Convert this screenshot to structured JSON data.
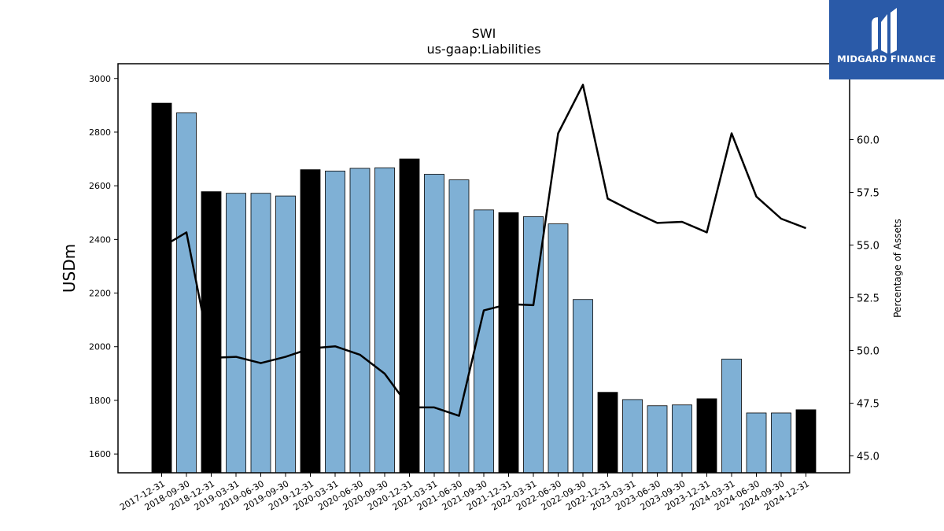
{
  "brand": {
    "name": "MIDGARD FINANCE",
    "logo_icon": "midgard-m-icon",
    "bg_color": "#2a5aa8"
  },
  "chart_data": {
    "type": "bar+line",
    "title": "SWI",
    "subtitle": "us-gaap:Liabilities",
    "ylabel": "USDm",
    "y2label": "Percentage of Assets",
    "ylim": [
      1530,
      3055
    ],
    "y2lim": [
      44.2,
      63.6
    ],
    "yticks": [
      1600,
      1800,
      2000,
      2200,
      2400,
      2600,
      2800,
      3000
    ],
    "y2ticks": [
      45.0,
      47.5,
      50.0,
      52.5,
      55.0,
      57.5,
      60.0
    ],
    "y2tick_labels": [
      "45.0",
      "47.5",
      "50.0",
      "52.5",
      "55.0",
      "57.5",
      "60.0"
    ],
    "categories": [
      "2017-12-31",
      "2018-09-30",
      "2018-12-31",
      "2019-03-31",
      "2019-06-30",
      "2019-09-30",
      "2019-12-31",
      "2020-03-31",
      "2020-06-30",
      "2020-09-30",
      "2020-12-31",
      "2021-03-31",
      "2021-06-30",
      "2021-09-30",
      "2021-12-31",
      "2022-03-31",
      "2022-06-30",
      "2022-09-30",
      "2022-12-31",
      "2023-03-31",
      "2023-06-30",
      "2023-09-30",
      "2023-12-31",
      "2024-03-31",
      "2024-06-30",
      "2024-09-30",
      "2024-12-31"
    ],
    "series": [
      {
        "type": "bar",
        "axis": "left",
        "values": [
          2908,
          2872,
          2578,
          2572,
          2572,
          2562,
          2660,
          2655,
          2665,
          2667,
          2700,
          2643,
          2622,
          2510,
          2500,
          2485,
          2458,
          2176,
          1830,
          1803,
          1780,
          1783,
          1806,
          1954,
          1753,
          1753,
          1765
        ]
      },
      {
        "type": "line",
        "axis": "right",
        "values": [
          54.9,
          55.6,
          49.65,
          49.7,
          49.4,
          49.7,
          50.1,
          50.2,
          49.8,
          48.9,
          47.3,
          47.3,
          46.9,
          51.9,
          52.2,
          52.15,
          60.3,
          62.6,
          57.2,
          56.6,
          56.05,
          56.1,
          55.6,
          60.3,
          57.3,
          56.25,
          55.8
        ]
      }
    ],
    "colors": {
      "annual_bar": "#000000",
      "quarter_bar": "#7fb0d5",
      "line": "#000000"
    },
    "annual_indices": [
      0,
      2,
      6,
      10,
      14,
      18,
      22,
      26
    ]
  }
}
